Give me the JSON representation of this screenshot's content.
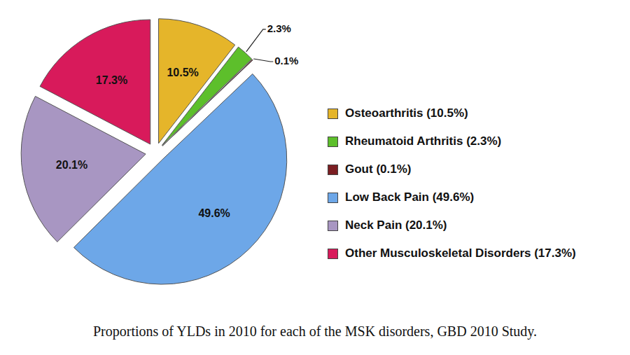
{
  "chart_data": {
    "type": "pie",
    "title": "Proportions of YLDs in 2010 for each of the MSK disorders, GBD 2010 Study.",
    "categories": [
      "Osteoarthritis (10.5%)",
      "Rheumatoid Arthritis (2.3%)",
      "Gout (0.1%)",
      "Low Back Pain (49.6%)",
      "Neck Pain (20.1%)",
      "Other Musculoskeletal Disorders (17.3%)"
    ],
    "values": [
      10.5,
      2.3,
      0.1,
      49.6,
      20.1,
      17.3
    ],
    "value_labels": [
      "10.5%",
      "2.3%",
      "0.1%",
      "49.6%",
      "20.1%",
      "17.3%"
    ],
    "colors": [
      "#E5B52A",
      "#5DBF2B",
      "#7B1E22",
      "#6DA7E8",
      "#A896C2",
      "#D81A5B"
    ],
    "data_labels": true,
    "legend": "right"
  }
}
